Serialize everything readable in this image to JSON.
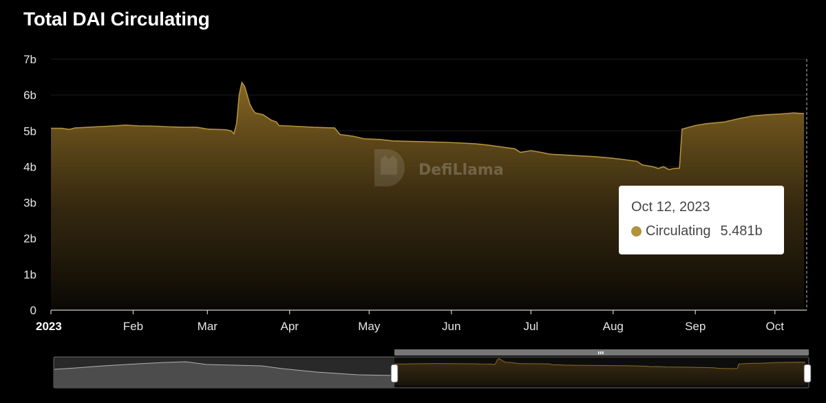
{
  "title": "Total DAI Circulating",
  "watermark": "DefiLlama",
  "colors": {
    "series": "#b4913c",
    "background": "#000000"
  },
  "tooltip": {
    "date": "Oct 12, 2023",
    "series_label": "Circulating",
    "value_label": "5.481b"
  },
  "chart_data": {
    "type": "area",
    "title": "Total DAI Circulating",
    "xlabel": "",
    "ylabel": "",
    "ylim": [
      0,
      7
    ],
    "xlim": [
      "2023-01-01",
      "2023-10-13"
    ],
    "y_ticks": [
      "0",
      "1b",
      "2b",
      "3b",
      "4b",
      "5b",
      "6b",
      "7b"
    ],
    "x_ticks": [
      {
        "date": "2023-01-01",
        "label": "2023",
        "bold": true
      },
      {
        "date": "2023-02-01",
        "label": "Feb"
      },
      {
        "date": "2023-03-01",
        "label": "Mar"
      },
      {
        "date": "2023-04-01",
        "label": "Apr"
      },
      {
        "date": "2023-05-01",
        "label": "May"
      },
      {
        "date": "2023-06-01",
        "label": "Jun"
      },
      {
        "date": "2023-07-01",
        "label": "Jul"
      },
      {
        "date": "2023-08-01",
        "label": "Aug"
      },
      {
        "date": "2023-09-01",
        "label": "Sep"
      },
      {
        "date": "2023-10-01",
        "label": "Oct"
      }
    ],
    "grid": true,
    "legend": "none",
    "series": [
      {
        "name": "Circulating",
        "points": [
          [
            "2023-01-01",
            5.07
          ],
          [
            "2023-01-05",
            5.07
          ],
          [
            "2023-01-08",
            5.04
          ],
          [
            "2023-01-10",
            5.08
          ],
          [
            "2023-01-15",
            5.1
          ],
          [
            "2023-01-20",
            5.12
          ],
          [
            "2023-01-25",
            5.14
          ],
          [
            "2023-01-29",
            5.16
          ],
          [
            "2023-02-03",
            5.14
          ],
          [
            "2023-02-10",
            5.13
          ],
          [
            "2023-02-15",
            5.11
          ],
          [
            "2023-02-20",
            5.1
          ],
          [
            "2023-02-25",
            5.1
          ],
          [
            "2023-03-01",
            5.05
          ],
          [
            "2023-03-08",
            5.03
          ],
          [
            "2023-03-10",
            5.0
          ],
          [
            "2023-03-11",
            4.92
          ],
          [
            "2023-03-12",
            5.2
          ],
          [
            "2023-03-13",
            6.0
          ],
          [
            "2023-03-14",
            6.35
          ],
          [
            "2023-03-15",
            6.25
          ],
          [
            "2023-03-16",
            6.0
          ],
          [
            "2023-03-17",
            5.75
          ],
          [
            "2023-03-18",
            5.6
          ],
          [
            "2023-03-19",
            5.5
          ],
          [
            "2023-03-22",
            5.45
          ],
          [
            "2023-03-25",
            5.3
          ],
          [
            "2023-03-27",
            5.25
          ],
          [
            "2023-03-28",
            5.15
          ],
          [
            "2023-04-05",
            5.12
          ],
          [
            "2023-04-10",
            5.1
          ],
          [
            "2023-04-18",
            5.08
          ],
          [
            "2023-04-20",
            4.9
          ],
          [
            "2023-04-25",
            4.85
          ],
          [
            "2023-04-29",
            4.78
          ],
          [
            "2023-05-05",
            4.76
          ],
          [
            "2023-05-10",
            4.72
          ],
          [
            "2023-05-20",
            4.7
          ],
          [
            "2023-05-30",
            4.68
          ],
          [
            "2023-06-05",
            4.66
          ],
          [
            "2023-06-10",
            4.64
          ],
          [
            "2023-06-15",
            4.6
          ],
          [
            "2023-06-20",
            4.55
          ],
          [
            "2023-06-25",
            4.5
          ],
          [
            "2023-06-27",
            4.4
          ],
          [
            "2023-07-01",
            4.45
          ],
          [
            "2023-07-05",
            4.4
          ],
          [
            "2023-07-08",
            4.35
          ],
          [
            "2023-07-15",
            4.32
          ],
          [
            "2023-07-25",
            4.28
          ],
          [
            "2023-07-30",
            4.25
          ],
          [
            "2023-08-05",
            4.2
          ],
          [
            "2023-08-10",
            4.15
          ],
          [
            "2023-08-12",
            4.05
          ],
          [
            "2023-08-16",
            4.0
          ],
          [
            "2023-08-18",
            3.95
          ],
          [
            "2023-08-20",
            4.0
          ],
          [
            "2023-08-22",
            3.92
          ],
          [
            "2023-08-24",
            3.95
          ],
          [
            "2023-08-26",
            3.96
          ],
          [
            "2023-08-27",
            5.05
          ],
          [
            "2023-09-01",
            5.15
          ],
          [
            "2023-09-05",
            5.2
          ],
          [
            "2023-09-12",
            5.25
          ],
          [
            "2023-09-18",
            5.35
          ],
          [
            "2023-09-23",
            5.42
          ],
          [
            "2023-09-28",
            5.45
          ],
          [
            "2023-10-03",
            5.47
          ],
          [
            "2023-10-08",
            5.5
          ],
          [
            "2023-10-12",
            5.481
          ]
        ]
      }
    ]
  }
}
